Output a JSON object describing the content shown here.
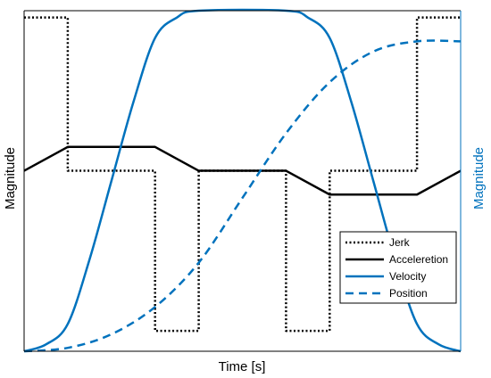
{
  "chart_data": {
    "type": "line",
    "xlabel": "Time [s]",
    "ylabel_left": "Magnitude",
    "ylabel_right": "Magnitude",
    "xlim": [
      0,
      1
    ],
    "ylim_left": [
      0,
      1
    ],
    "ylim_right": [
      0,
      1
    ],
    "grid": false,
    "tick_labels_shown": false,
    "legend_position": "lower-right",
    "colors": {
      "jerk": "#000000",
      "acceleration": "#000000",
      "velocity": "#0072BD",
      "position": "#0072BD",
      "right_axis": "#0072BD"
    },
    "series": [
      {
        "name": "Jerk",
        "axis": "left",
        "style": "dotted",
        "x": [
          0,
          0.1,
          0.1,
          0.3,
          0.3,
          0.4,
          0.4,
          0.6,
          0.6,
          0.7,
          0.7,
          0.9,
          0.9,
          1.0
        ],
        "y": [
          0.98,
          0.98,
          0.53,
          0.53,
          0.06,
          0.06,
          0.53,
          0.53,
          0.06,
          0.06,
          0.53,
          0.53,
          0.98,
          0.98
        ]
      },
      {
        "name": "Acceleration",
        "axis": "left",
        "style": "solid",
        "x": [
          0,
          0.1,
          0.3,
          0.4,
          0.6,
          0.7,
          0.9,
          1.0
        ],
        "y": [
          0.53,
          0.6,
          0.6,
          0.53,
          0.53,
          0.46,
          0.46,
          0.53
        ]
      },
      {
        "name": "Velocity",
        "axis": "right",
        "style": "solid",
        "x": [
          0,
          0.05,
          0.1,
          0.15,
          0.2,
          0.25,
          0.3,
          0.35,
          0.4,
          0.6,
          0.65,
          0.7,
          0.75,
          0.8,
          0.85,
          0.9,
          0.95,
          1.0
        ],
        "y": [
          0.0,
          0.02,
          0.08,
          0.27,
          0.5,
          0.73,
          0.92,
          0.98,
          1.0,
          1.0,
          0.98,
          0.92,
          0.73,
          0.5,
          0.27,
          0.08,
          0.02,
          0.0
        ],
        "legend_label": "Velocity"
      },
      {
        "name": "Position",
        "axis": "right",
        "style": "dashed",
        "x": [
          0,
          0.1,
          0.2,
          0.3,
          0.4,
          0.5,
          0.6,
          0.7,
          0.8,
          0.9,
          1.0
        ],
        "y": [
          0.0,
          0.01,
          0.05,
          0.13,
          0.26,
          0.45,
          0.64,
          0.79,
          0.88,
          0.91,
          0.91
        ]
      }
    ],
    "legend": [
      "Jerk",
      "Acceleretion",
      "Velocity",
      "Position"
    ]
  }
}
